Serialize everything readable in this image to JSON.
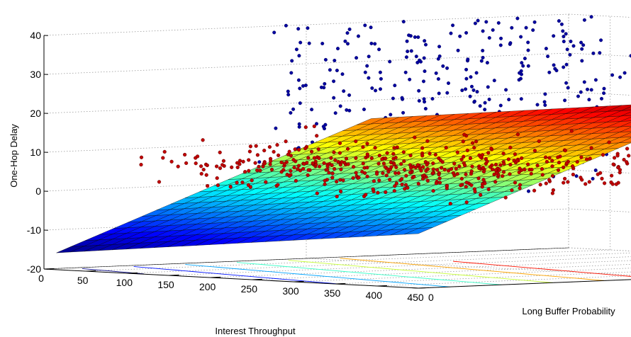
{
  "chart_data": {
    "type": "scatter",
    "subtype": "3d-scatter-with-plane",
    "title": "",
    "xlabel": "Interest Throughput",
    "ylabel": "Long Buffer Probability",
    "zlabel": "One-Hop Delay",
    "xlim": [
      0,
      450
    ],
    "ylim": [
      0,
      1
    ],
    "zlim": [
      -20,
      40
    ],
    "xticks": [
      "0",
      "50",
      "100",
      "150",
      "200",
      "250",
      "300",
      "350",
      "400",
      "450"
    ],
    "yticks": [
      "0",
      "0.5",
      "1"
    ],
    "zticks": [
      "-20",
      "-10",
      "0",
      "10",
      "20",
      "30",
      "40"
    ],
    "grid": true,
    "colormap": "jet",
    "series": [
      {
        "color": "#0000a0",
        "description_x_range": [
          0,
          130
        ],
        "description_y_range": [
          0.4,
          1.0
        ],
        "description_z_range": [
          -3,
          40
        ],
        "approx_count": 380
      },
      {
        "color": "#c00000",
        "description_x_range": [
          100,
          450
        ],
        "description_y_range": [
          0.0,
          0.6
        ],
        "description_z_range": [
          -2,
          28
        ],
        "approx_count": 480
      }
    ],
    "plane": {
      "z_at_corner_x0_y0": -16,
      "z_at_corner_x450_y0": -6,
      "z_at_corner_x0_y1": 36,
      "z_at_corner_x450_y1": 46
    }
  }
}
